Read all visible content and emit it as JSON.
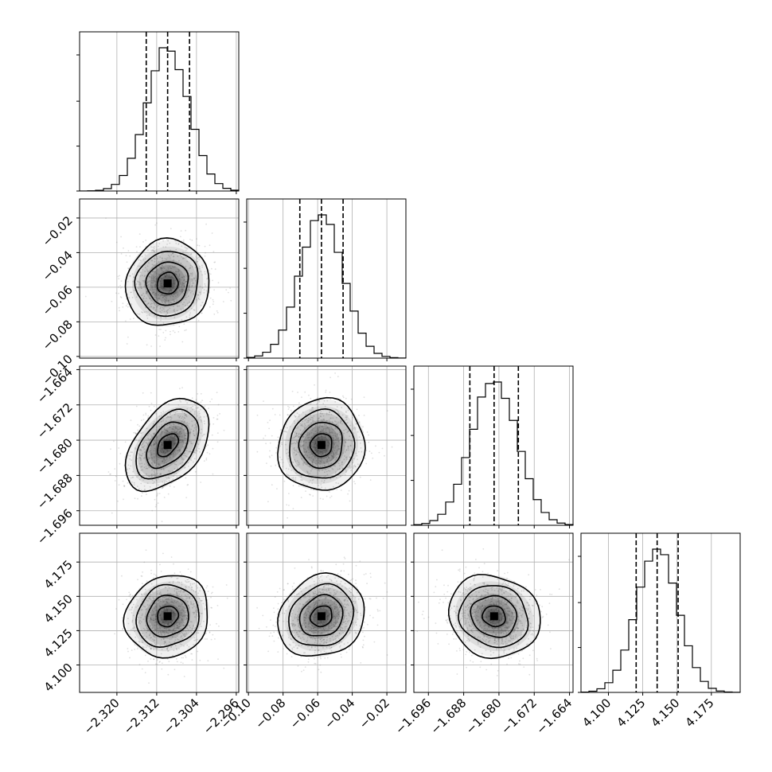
{
  "chart_data": {
    "type": "corner",
    "grid": true,
    "parameters": [
      {
        "range": [
          -2.3275,
          -2.2955
        ],
        "mean": -2.3098,
        "sd": 0.0042,
        "quantiles": [
          -2.3141,
          -2.3098,
          -2.3054
        ],
        "ticks": [
          -2.32,
          -2.312,
          -2.304,
          -2.296
        ],
        "tick_labels": [
          "−2.320",
          "−2.312",
          "−2.304",
          "−2.296"
        ]
      },
      {
        "range": [
          -0.101,
          -0.009
        ],
        "mean": -0.0578,
        "sd": 0.0125,
        "quantiles": [
          -0.0703,
          -0.0578,
          -0.0453
        ],
        "ticks": [
          -0.1,
          -0.08,
          -0.06,
          -0.04,
          -0.02
        ],
        "tick_labels": [
          "−0.10",
          "−0.08",
          "−0.06",
          "−0.04",
          "−0.02"
        ]
      },
      {
        "range": [
          -1.6993,
          -1.6632
        ],
        "mean": -1.6811,
        "sd": 0.0052,
        "quantiles": [
          -1.6866,
          -1.6811,
          -1.6756
        ],
        "ticks": [
          -1.696,
          -1.688,
          -1.68,
          -1.672,
          -1.664
        ],
        "tick_labels": [
          "−1.696",
          "−1.688",
          "−1.680",
          "−1.672",
          "−1.664"
        ]
      },
      {
        "range": [
          4.08,
          4.196
        ],
        "mean": 4.1355,
        "sd": 0.015,
        "quantiles": [
          4.1202,
          4.1355,
          4.1508
        ],
        "ticks": [
          4.1,
          4.125,
          4.15,
          4.175
        ],
        "tick_labels": [
          "4.100",
          "4.125",
          "4.150",
          "4.175"
        ]
      }
    ],
    "correlations": {
      "1-0": 0.05,
      "2-0": 0.45,
      "2-1": 0.05,
      "3-0": 0.1,
      "3-1": 0.15,
      "3-2": -0.1
    },
    "histogram_bins": 20,
    "contour_levels_sigma": [
      0.5,
      1.0,
      1.5,
      2.0
    ],
    "colors": {
      "axes": "#000000",
      "grid": "#b0b0b0",
      "points": "#7f7f7f",
      "density": "#000000"
    }
  }
}
